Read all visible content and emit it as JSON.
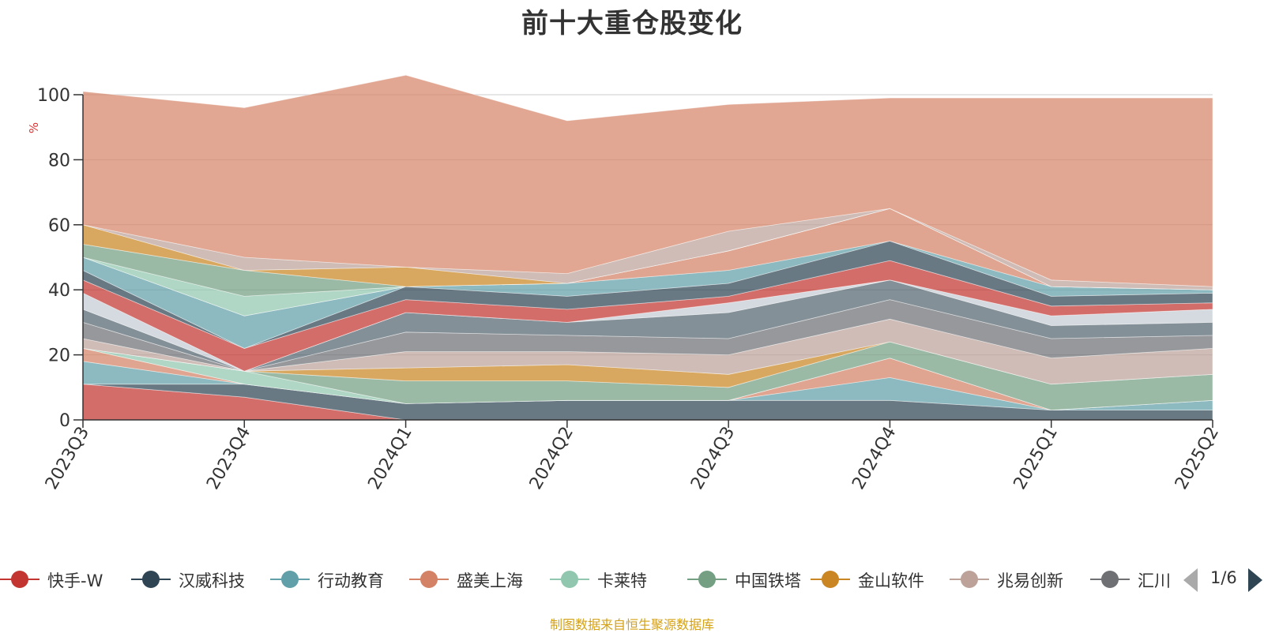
{
  "title": "前十大重仓股变化",
  "source_note": "制图数据来自恒生聚源数据库",
  "legend_pager": "1/6",
  "colors": {
    "快手-W": "#c23531",
    "汉威科技": "#2f4554",
    "行动教育": "#61a0a8",
    "盛美上海": "#d48265",
    "卡莱特": "#91c7ae",
    "中国铁塔": "#749f83",
    "金山软件": "#ca8622",
    "兆易创新": "#bda29a",
    "汇川": "#6e7074",
    "other": "#c4ccd3",
    "top": "#d48265"
  },
  "chart_data": {
    "type": "area",
    "title": "前十大重仓股变化",
    "ylabel": "%",
    "ylim": [
      0,
      100
    ],
    "yticks": [
      0,
      20,
      40,
      60,
      80,
      100
    ],
    "grid": true,
    "legend_position": "bottom",
    "categories": [
      "2023Q3",
      "2023Q4",
      "2024Q1",
      "2024Q2",
      "2024Q3",
      "2024Q4",
      "2025Q1",
      "2025Q2"
    ],
    "legend_items": [
      "快手-W",
      "汉威科技",
      "行动教育",
      "盛美上海",
      "卡莱特",
      "中国铁塔",
      "金山软件",
      "兆易创新",
      "汇川"
    ],
    "series": [
      {
        "name": "快手-W",
        "values": [
          11,
          7,
          0,
          0,
          0,
          0,
          0,
          0
        ]
      },
      {
        "name": "汉威科技",
        "values": [
          0,
          4,
          5,
          6,
          6,
          6,
          3,
          3
        ]
      },
      {
        "name": "行动教育",
        "values": [
          7,
          0,
          0,
          0,
          0,
          7,
          0,
          3
        ]
      },
      {
        "name": "盛美上海",
        "values": [
          4,
          0,
          0,
          0,
          0,
          6,
          0,
          0
        ]
      },
      {
        "name": "卡莱特",
        "values": [
          0,
          4,
          0,
          0,
          0,
          0,
          0,
          0
        ]
      },
      {
        "name": "中国铁塔",
        "values": [
          0,
          0,
          7,
          6,
          4,
          5,
          8,
          8
        ]
      },
      {
        "name": "金山软件",
        "values": [
          0,
          0,
          4,
          5,
          4,
          0,
          0,
          0
        ]
      },
      {
        "name": "兆易创新",
        "values": [
          3,
          0,
          5,
          4,
          6,
          7,
          8,
          8
        ]
      },
      {
        "name": "汇川",
        "values": [
          5,
          0,
          6,
          5,
          5,
          6,
          6,
          4
        ]
      },
      {
        "values": [
          4,
          0,
          6,
          4,
          8,
          6,
          4,
          4
        ]
      },
      {
        "values": [
          5,
          0,
          0,
          0,
          3,
          0,
          3,
          4
        ]
      },
      {
        "values": [
          4,
          7,
          4,
          4,
          2,
          6,
          3,
          2
        ]
      },
      {
        "values": [
          3,
          0,
          4,
          4,
          4,
          6,
          3,
          3
        ]
      },
      {
        "values": [
          4,
          10,
          0,
          4,
          4,
          0,
          3,
          1
        ]
      },
      {
        "values": [
          0,
          0,
          0,
          0,
          6,
          10,
          0,
          0
        ]
      },
      {
        "values": [
          0,
          6,
          0,
          0,
          0,
          0,
          0,
          0
        ]
      },
      {
        "values": [
          4,
          8,
          0,
          0,
          0,
          0,
          0,
          0
        ]
      },
      {
        "values": [
          6,
          0,
          6,
          0,
          0,
          0,
          0,
          0
        ]
      },
      {
        "values": [
          0,
          4,
          0,
          3,
          6,
          0,
          2,
          1
        ]
      },
      {
        "values": [
          41,
          46,
          59,
          47,
          39,
          34,
          56,
          58
        ]
      }
    ]
  }
}
